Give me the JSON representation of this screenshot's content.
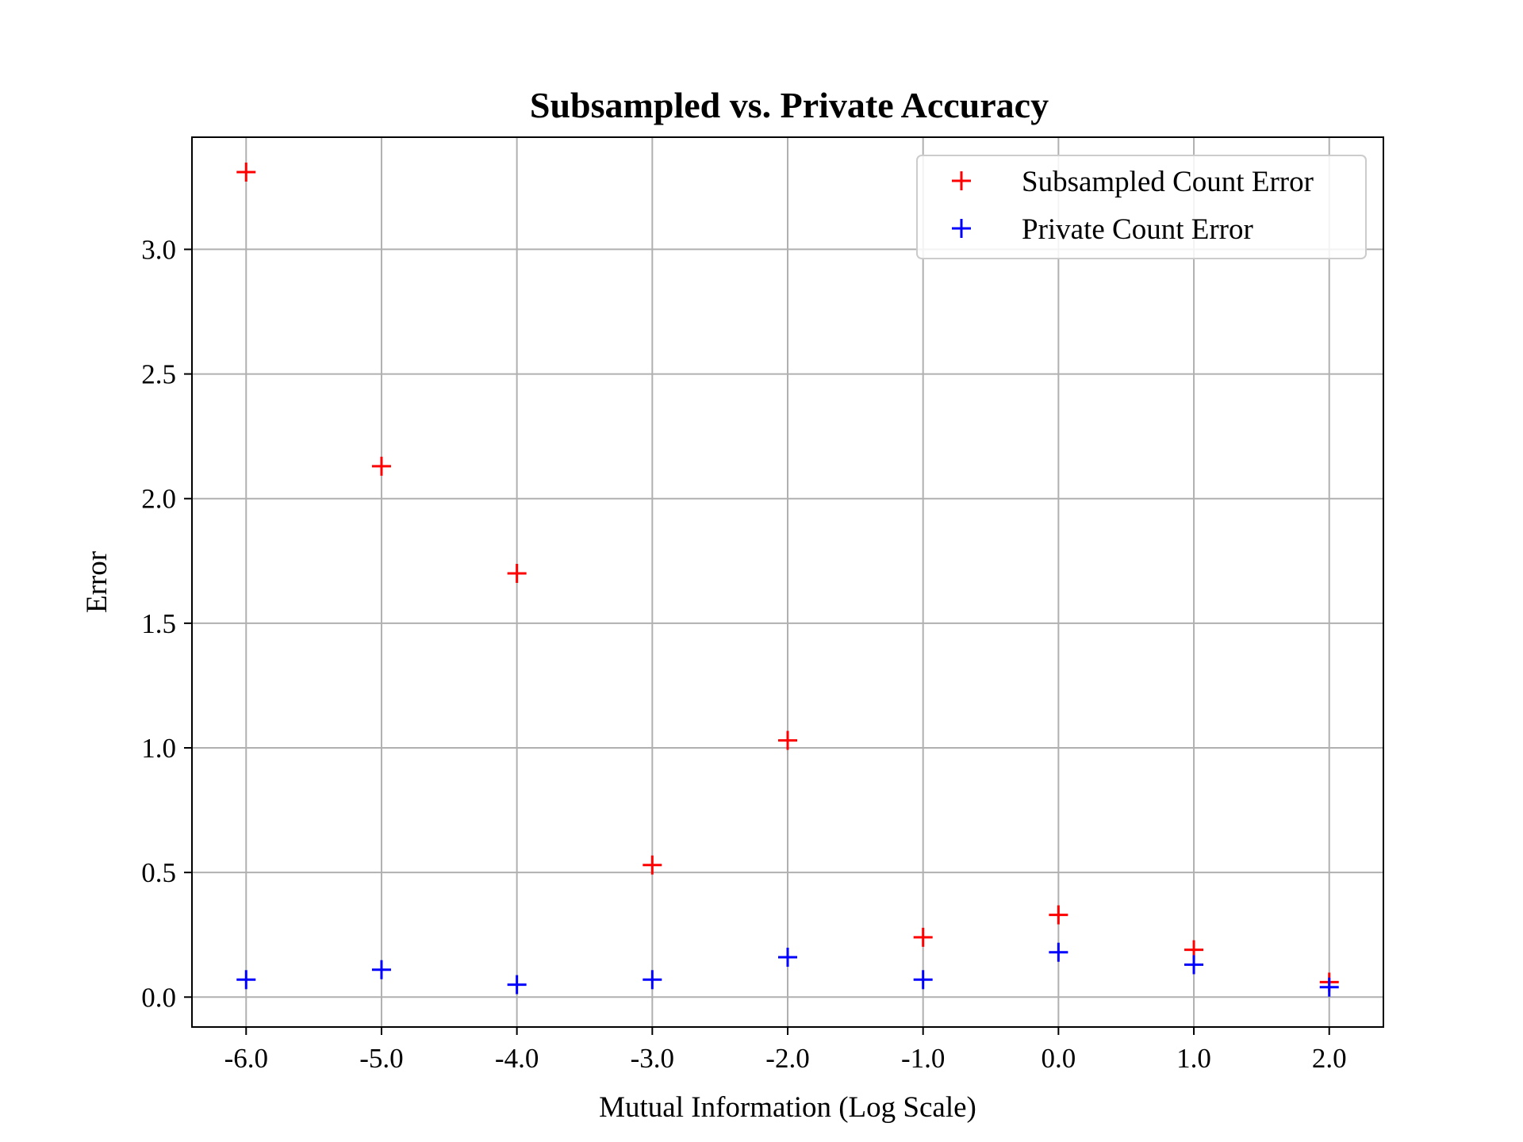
{
  "chart_data": {
    "type": "scatter",
    "title": "Subsampled vs. Private Accuracy",
    "xlabel": "Mutual Information (Log Scale)",
    "ylabel": "Error",
    "x": [
      -6.0,
      -5.0,
      -4.0,
      -3.0,
      -2.0,
      -1.0,
      0.0,
      1.0,
      2.0
    ],
    "x_tick_labels": [
      "-6.0",
      "-5.0",
      "-4.0",
      "-3.0",
      "-2.0",
      "-1.0",
      "0.0",
      "1.0",
      "2.0"
    ],
    "y_tick_labels": [
      "0.0",
      "0.5",
      "1.0",
      "1.5",
      "2.0",
      "2.5",
      "3.0"
    ],
    "y_ticks": [
      0.0,
      0.5,
      1.0,
      1.5,
      2.0,
      2.5,
      3.0
    ],
    "xlim": [
      -6.4,
      2.4
    ],
    "ylim": [
      -0.12,
      3.45
    ],
    "grid": true,
    "legend_position": "top-right",
    "marker": "plus",
    "series": [
      {
        "name": "Subsampled Count Error",
        "color": "#ff0000",
        "values": [
          3.31,
          2.13,
          1.7,
          0.53,
          1.03,
          0.24,
          0.33,
          0.19,
          0.06
        ]
      },
      {
        "name": "Private Count Error",
        "color": "#0000ff",
        "values": [
          0.07,
          0.11,
          0.05,
          0.07,
          0.16,
          0.07,
          0.18,
          0.13,
          0.04
        ]
      }
    ]
  }
}
